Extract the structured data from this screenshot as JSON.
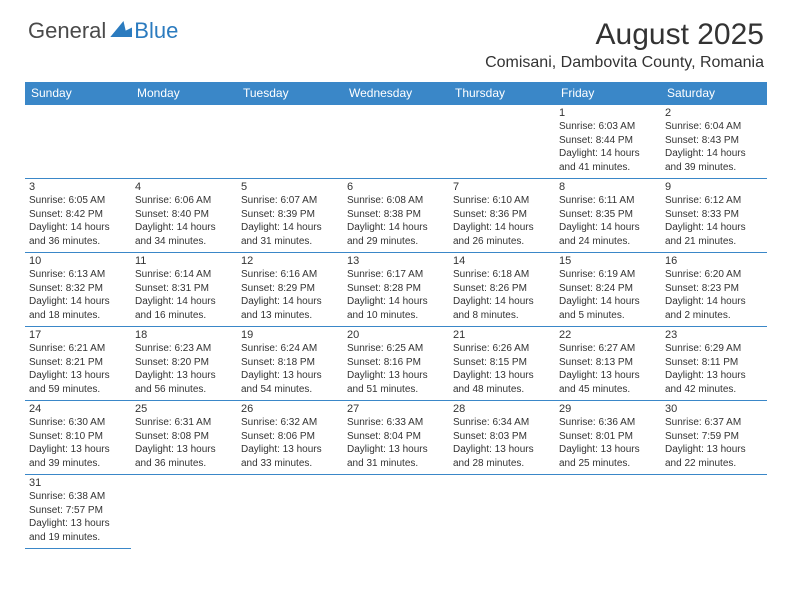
{
  "brand": {
    "name_part1": "General",
    "name_part2": "Blue",
    "color_general": "#4a4a4a",
    "color_blue": "#2b7bbf"
  },
  "title": {
    "month_year": "August 2025",
    "location": "Comisani, Dambovita County, Romania"
  },
  "theme": {
    "header_bg": "#3a87c8",
    "header_text": "#ffffff",
    "cell_border": "#3a87c8",
    "body_text": "#333333",
    "page_bg": "#ffffff",
    "month_fontsize": 30,
    "location_fontsize": 16,
    "day_header_fontsize": 12,
    "cell_fontsize": 10
  },
  "day_headers": [
    "Sunday",
    "Monday",
    "Tuesday",
    "Wednesday",
    "Thursday",
    "Friday",
    "Saturday"
  ],
  "weeks": [
    [
      null,
      null,
      null,
      null,
      null,
      {
        "n": "1",
        "sunrise": "Sunrise: 6:03 AM",
        "sunset": "Sunset: 8:44 PM",
        "daylight": "Daylight: 14 hours and 41 minutes."
      },
      {
        "n": "2",
        "sunrise": "Sunrise: 6:04 AM",
        "sunset": "Sunset: 8:43 PM",
        "daylight": "Daylight: 14 hours and 39 minutes."
      }
    ],
    [
      {
        "n": "3",
        "sunrise": "Sunrise: 6:05 AM",
        "sunset": "Sunset: 8:42 PM",
        "daylight": "Daylight: 14 hours and 36 minutes."
      },
      {
        "n": "4",
        "sunrise": "Sunrise: 6:06 AM",
        "sunset": "Sunset: 8:40 PM",
        "daylight": "Daylight: 14 hours and 34 minutes."
      },
      {
        "n": "5",
        "sunrise": "Sunrise: 6:07 AM",
        "sunset": "Sunset: 8:39 PM",
        "daylight": "Daylight: 14 hours and 31 minutes."
      },
      {
        "n": "6",
        "sunrise": "Sunrise: 6:08 AM",
        "sunset": "Sunset: 8:38 PM",
        "daylight": "Daylight: 14 hours and 29 minutes."
      },
      {
        "n": "7",
        "sunrise": "Sunrise: 6:10 AM",
        "sunset": "Sunset: 8:36 PM",
        "daylight": "Daylight: 14 hours and 26 minutes."
      },
      {
        "n": "8",
        "sunrise": "Sunrise: 6:11 AM",
        "sunset": "Sunset: 8:35 PM",
        "daylight": "Daylight: 14 hours and 24 minutes."
      },
      {
        "n": "9",
        "sunrise": "Sunrise: 6:12 AM",
        "sunset": "Sunset: 8:33 PM",
        "daylight": "Daylight: 14 hours and 21 minutes."
      }
    ],
    [
      {
        "n": "10",
        "sunrise": "Sunrise: 6:13 AM",
        "sunset": "Sunset: 8:32 PM",
        "daylight": "Daylight: 14 hours and 18 minutes."
      },
      {
        "n": "11",
        "sunrise": "Sunrise: 6:14 AM",
        "sunset": "Sunset: 8:31 PM",
        "daylight": "Daylight: 14 hours and 16 minutes."
      },
      {
        "n": "12",
        "sunrise": "Sunrise: 6:16 AM",
        "sunset": "Sunset: 8:29 PM",
        "daylight": "Daylight: 14 hours and 13 minutes."
      },
      {
        "n": "13",
        "sunrise": "Sunrise: 6:17 AM",
        "sunset": "Sunset: 8:28 PM",
        "daylight": "Daylight: 14 hours and 10 minutes."
      },
      {
        "n": "14",
        "sunrise": "Sunrise: 6:18 AM",
        "sunset": "Sunset: 8:26 PM",
        "daylight": "Daylight: 14 hours and 8 minutes."
      },
      {
        "n": "15",
        "sunrise": "Sunrise: 6:19 AM",
        "sunset": "Sunset: 8:24 PM",
        "daylight": "Daylight: 14 hours and 5 minutes."
      },
      {
        "n": "16",
        "sunrise": "Sunrise: 6:20 AM",
        "sunset": "Sunset: 8:23 PM",
        "daylight": "Daylight: 14 hours and 2 minutes."
      }
    ],
    [
      {
        "n": "17",
        "sunrise": "Sunrise: 6:21 AM",
        "sunset": "Sunset: 8:21 PM",
        "daylight": "Daylight: 13 hours and 59 minutes."
      },
      {
        "n": "18",
        "sunrise": "Sunrise: 6:23 AM",
        "sunset": "Sunset: 8:20 PM",
        "daylight": "Daylight: 13 hours and 56 minutes."
      },
      {
        "n": "19",
        "sunrise": "Sunrise: 6:24 AM",
        "sunset": "Sunset: 8:18 PM",
        "daylight": "Daylight: 13 hours and 54 minutes."
      },
      {
        "n": "20",
        "sunrise": "Sunrise: 6:25 AM",
        "sunset": "Sunset: 8:16 PM",
        "daylight": "Daylight: 13 hours and 51 minutes."
      },
      {
        "n": "21",
        "sunrise": "Sunrise: 6:26 AM",
        "sunset": "Sunset: 8:15 PM",
        "daylight": "Daylight: 13 hours and 48 minutes."
      },
      {
        "n": "22",
        "sunrise": "Sunrise: 6:27 AM",
        "sunset": "Sunset: 8:13 PM",
        "daylight": "Daylight: 13 hours and 45 minutes."
      },
      {
        "n": "23",
        "sunrise": "Sunrise: 6:29 AM",
        "sunset": "Sunset: 8:11 PM",
        "daylight": "Daylight: 13 hours and 42 minutes."
      }
    ],
    [
      {
        "n": "24",
        "sunrise": "Sunrise: 6:30 AM",
        "sunset": "Sunset: 8:10 PM",
        "daylight": "Daylight: 13 hours and 39 minutes."
      },
      {
        "n": "25",
        "sunrise": "Sunrise: 6:31 AM",
        "sunset": "Sunset: 8:08 PM",
        "daylight": "Daylight: 13 hours and 36 minutes."
      },
      {
        "n": "26",
        "sunrise": "Sunrise: 6:32 AM",
        "sunset": "Sunset: 8:06 PM",
        "daylight": "Daylight: 13 hours and 33 minutes."
      },
      {
        "n": "27",
        "sunrise": "Sunrise: 6:33 AM",
        "sunset": "Sunset: 8:04 PM",
        "daylight": "Daylight: 13 hours and 31 minutes."
      },
      {
        "n": "28",
        "sunrise": "Sunrise: 6:34 AM",
        "sunset": "Sunset: 8:03 PM",
        "daylight": "Daylight: 13 hours and 28 minutes."
      },
      {
        "n": "29",
        "sunrise": "Sunrise: 6:36 AM",
        "sunset": "Sunset: 8:01 PM",
        "daylight": "Daylight: 13 hours and 25 minutes."
      },
      {
        "n": "30",
        "sunrise": "Sunrise: 6:37 AM",
        "sunset": "Sunset: 7:59 PM",
        "daylight": "Daylight: 13 hours and 22 minutes."
      }
    ],
    [
      {
        "n": "31",
        "sunrise": "Sunrise: 6:38 AM",
        "sunset": "Sunset: 7:57 PM",
        "daylight": "Daylight: 13 hours and 19 minutes."
      },
      null,
      null,
      null,
      null,
      null,
      null
    ]
  ]
}
